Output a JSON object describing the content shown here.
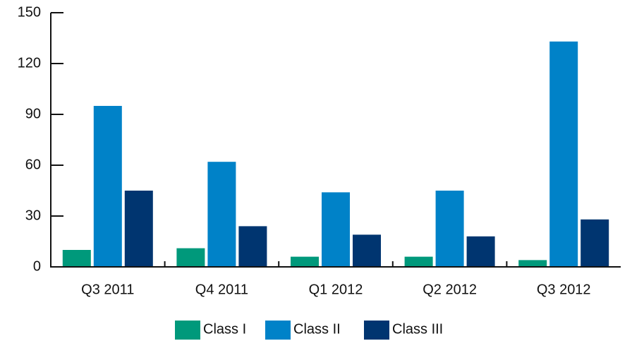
{
  "chart_data": {
    "type": "bar",
    "categories": [
      "Q3 2011",
      "Q4 2011",
      "Q1 2012",
      "Q2 2012",
      "Q3 2012"
    ],
    "series": [
      {
        "name": "Class I",
        "color": "#00997b",
        "values": [
          10,
          11,
          6,
          6,
          4
        ]
      },
      {
        "name": "Class II",
        "color": "#0082c8",
        "values": [
          95,
          62,
          44,
          45,
          133
        ]
      },
      {
        "name": "Class III",
        "color": "#003570",
        "values": [
          45,
          24,
          19,
          18,
          28
        ]
      }
    ],
    "ylim": [
      0,
      150
    ],
    "yticks": [
      0,
      30,
      60,
      90,
      120,
      150
    ],
    "grid": false,
    "legend": "bottom"
  }
}
